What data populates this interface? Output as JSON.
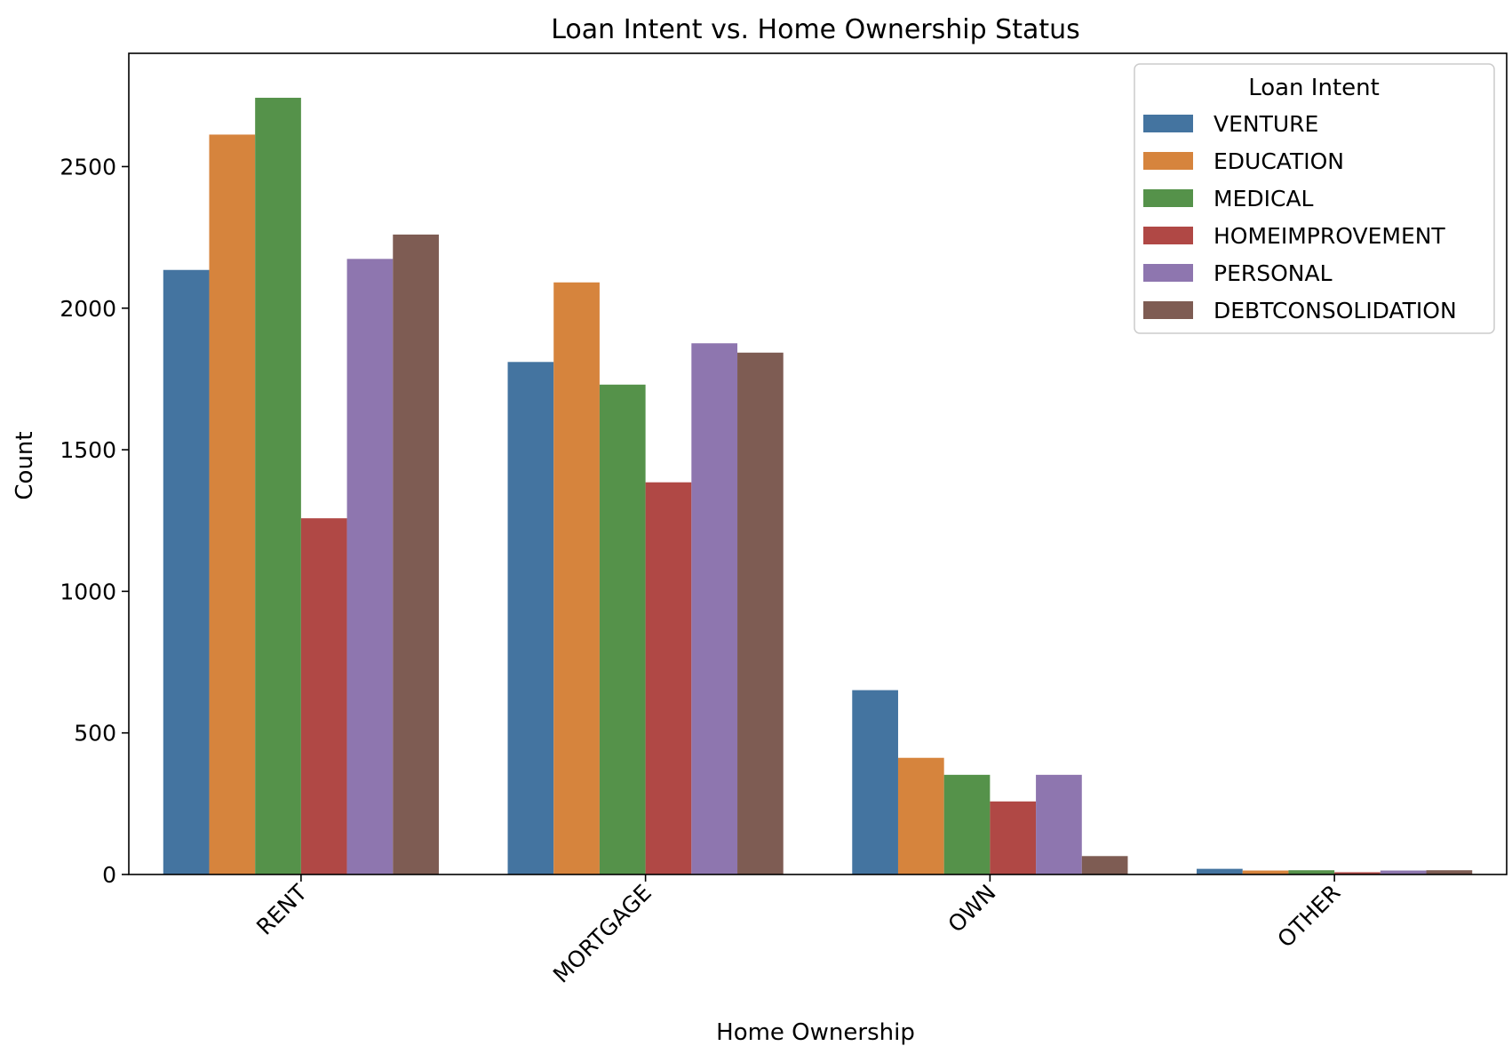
{
  "chart_data": {
    "type": "bar",
    "title": "Loan Intent vs. Home Ownership Status",
    "xlabel": "Home Ownership",
    "ylabel": "Count",
    "categories": [
      "RENT",
      "MORTGAGE",
      "OWN",
      "OTHER"
    ],
    "ylim": [
      0,
      2900
    ],
    "yticks": [
      0,
      500,
      1000,
      1500,
      2000,
      2500
    ],
    "legend": {
      "title": "Loan Intent",
      "position": "top-right"
    },
    "grid": false,
    "series": [
      {
        "name": "VENTURE",
        "color": "#4474a0",
        "values": [
          2135,
          1810,
          651,
          20
        ]
      },
      {
        "name": "EDUCATION",
        "color": "#d6843d",
        "values": [
          2613,
          2091,
          412,
          14
        ]
      },
      {
        "name": "MEDICAL",
        "color": "#55924a",
        "values": [
          2743,
          1730,
          352,
          15
        ]
      },
      {
        "name": "HOMEIMPROVEMENT",
        "color": "#b04845",
        "values": [
          1258,
          1385,
          258,
          8
        ]
      },
      {
        "name": "PERSONAL",
        "color": "#8e76af",
        "values": [
          2174,
          1876,
          352,
          14
        ]
      },
      {
        "name": "DEBTCONSOLIDATION",
        "color": "#7e5c53",
        "values": [
          2260,
          1843,
          65,
          15
        ]
      }
    ]
  }
}
